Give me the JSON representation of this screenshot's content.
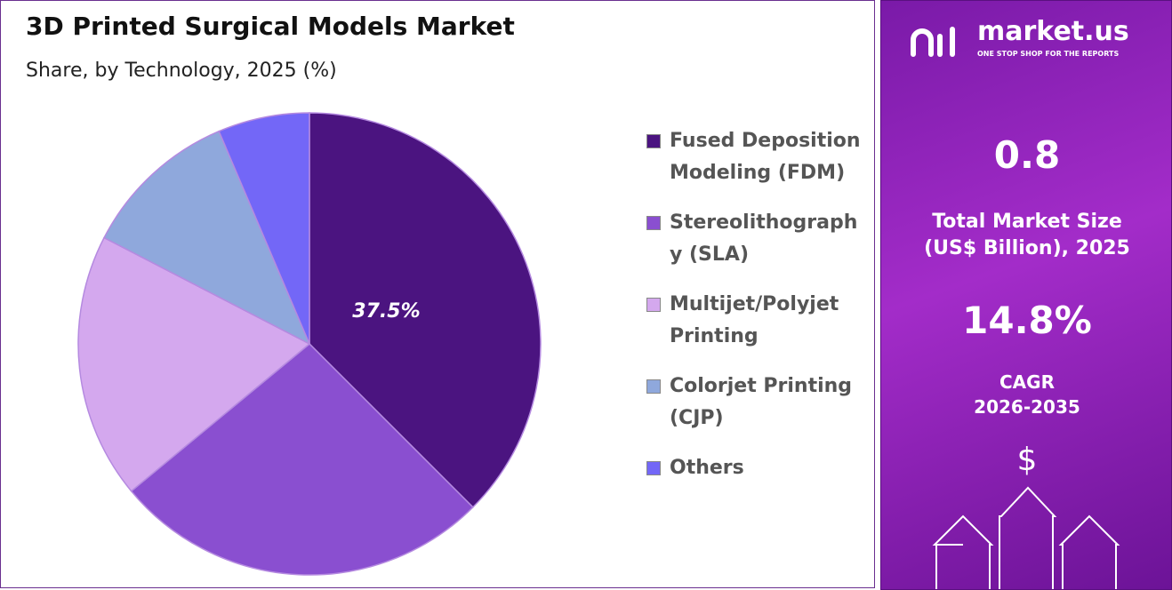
{
  "chart_data": {
    "type": "pie",
    "title": "3D Printed Surgical Models Market",
    "subtitle": "Share, by Technology, 2025 (%)",
    "categories": [
      "Fused Deposition Modeling (FDM)",
      "Stereolithography (SLA)",
      "Multijet/Polyjet Printing",
      "Colorjet Printing (CJP)",
      "Others"
    ],
    "values": [
      37.5,
      26.5,
      18.6,
      11.0,
      6.4
    ],
    "value_labels": [
      "37.5%",
      null,
      null,
      null,
      null
    ],
    "colors": [
      "#4b1480",
      "#8a4fd0",
      "#d4a8ee",
      "#8fa8dc",
      "#7367f7"
    ],
    "legend": "right"
  },
  "panel": {
    "brand": "market.us",
    "tagline": "ONE STOP SHOP FOR THE REPORTS",
    "market_size": "0.8",
    "market_size_label": [
      "Total Market Size",
      "(US$ Billion), 2025"
    ],
    "cagr": "14.8%",
    "cagr_label": [
      "CAGR",
      "2026-2035"
    ],
    "currency_symbol": "$"
  }
}
